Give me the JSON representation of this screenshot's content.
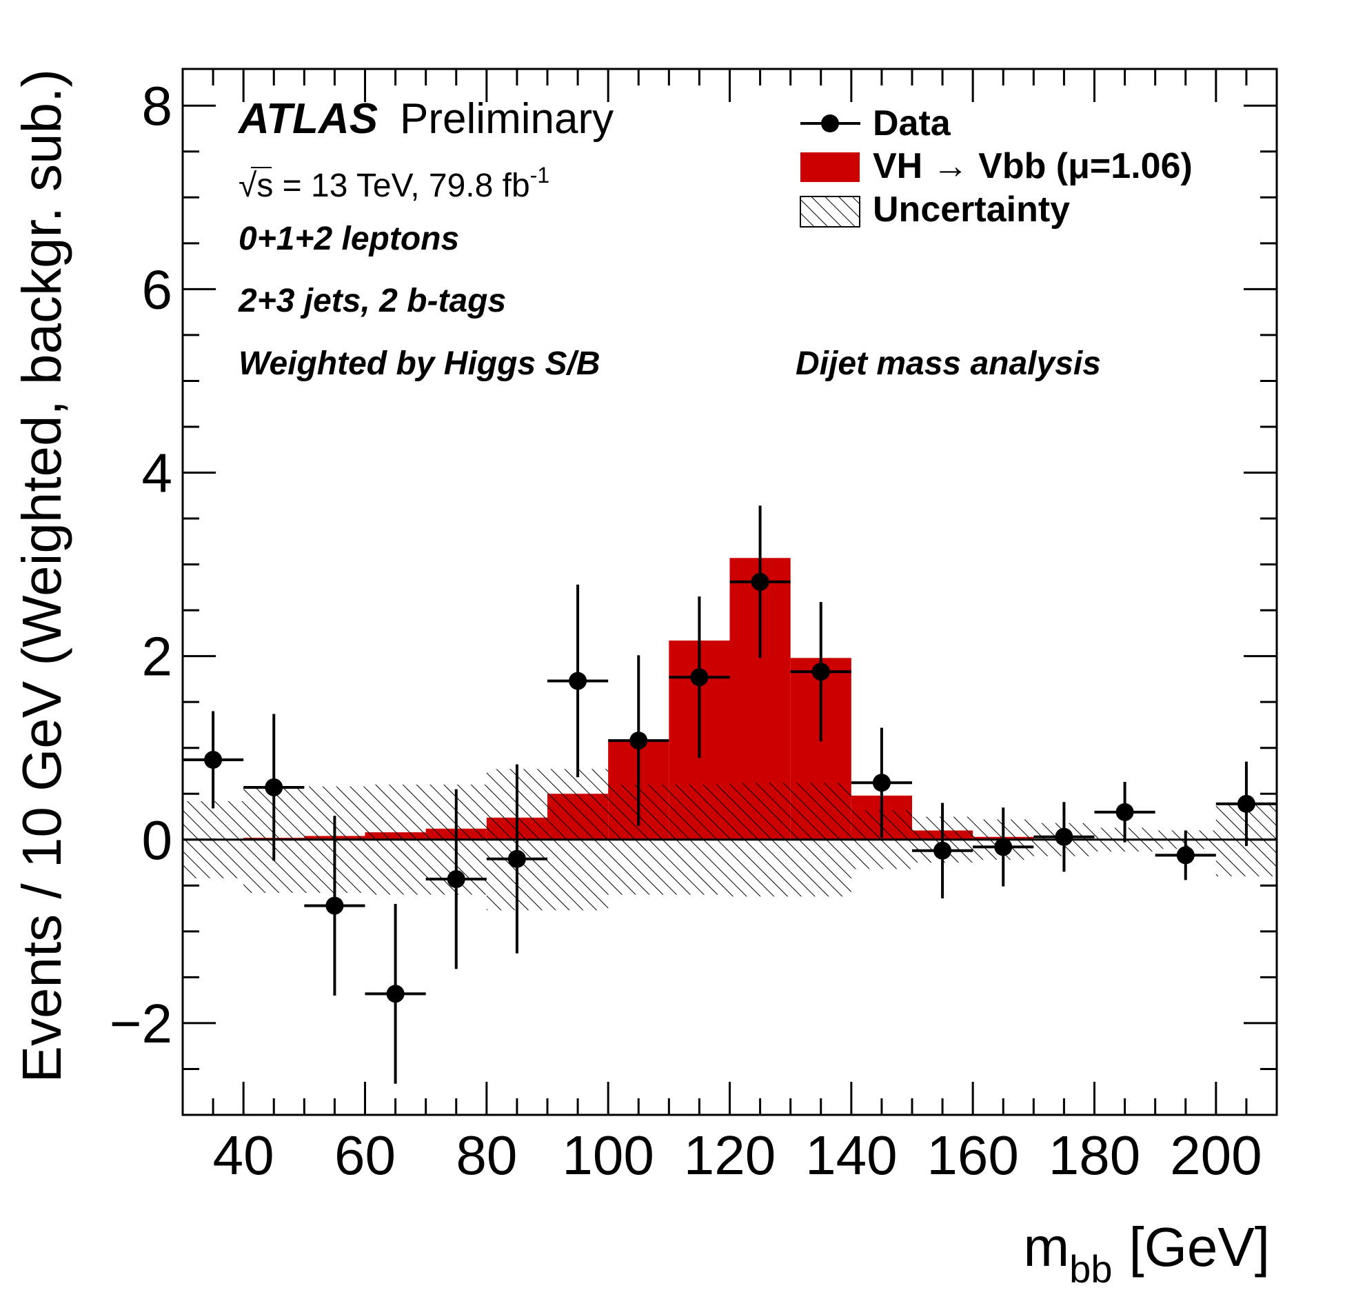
{
  "chart_data": {
    "type": "bar",
    "title": "",
    "xlabel": "m",
    "xlabel_sub": "bb",
    "xlabel_unit": "[GeV]",
    "ylabel": "Events / 10 GeV (Weighted, backgr. sub.)",
    "xlim": [
      30,
      210
    ],
    "ylim": [
      -3,
      8.4
    ],
    "x_ticks": [
      "40",
      "60",
      "80",
      "100",
      "120",
      "140",
      "160",
      "180",
      "200"
    ],
    "y_ticks": [
      "8",
      "6",
      "4",
      "2",
      "0",
      "−2"
    ],
    "bin_edges": [
      30,
      40,
      50,
      60,
      70,
      80,
      90,
      100,
      110,
      120,
      130,
      140,
      150,
      160,
      170,
      180,
      190,
      200,
      210
    ],
    "series": [
      {
        "name": "VH → Vbb (μ=1.06)",
        "style": "filled-histogram",
        "color": "#cc0000",
        "values": [
          0.0,
          0.02,
          0.04,
          0.08,
          0.12,
          0.24,
          0.5,
          1.07,
          2.17,
          3.07,
          1.98,
          0.48,
          0.1,
          0.03,
          0.01,
          0.0,
          0.0,
          0.0
        ]
      },
      {
        "name": "Uncertainty",
        "style": "hatched-band",
        "color": "#000000",
        "values": [
          0.42,
          0.58,
          0.58,
          0.6,
          0.6,
          0.77,
          0.77,
          0.6,
          0.6,
          0.62,
          0.62,
          0.32,
          0.25,
          0.22,
          0.18,
          0.13,
          0.1,
          0.4
        ]
      },
      {
        "name": "Data",
        "style": "points-with-errors",
        "color": "#000000",
        "values": [
          0.87,
          0.57,
          -0.72,
          -1.68,
          -0.43,
          -0.21,
          1.73,
          1.08,
          1.77,
          2.81,
          1.83,
          0.62,
          -0.12,
          -0.08,
          0.03,
          0.3,
          -0.17,
          0.39
        ],
        "errors": [
          0.53,
          0.8,
          0.98,
          0.98,
          0.98,
          1.03,
          1.05,
          0.93,
          0.88,
          0.83,
          0.76,
          0.6,
          0.52,
          0.43,
          0.38,
          0.33,
          0.27,
          0.46
        ]
      }
    ],
    "legend": {
      "position": "top-right",
      "entries": [
        "Data",
        "VH → Vbb (μ=1.06)",
        "Uncertainty"
      ]
    },
    "annotations": {
      "experiment": "ATLAS",
      "status": "Preliminary",
      "energy_prefix": "√s = 13 TeV, 79.8 fb",
      "energy_exp": "-1",
      "channel": "0+1+2 leptons",
      "jets": "2+3 jets, 2 b-tags",
      "weighting": "Weighted by Higgs S/B",
      "analysis": "Dijet mass analysis"
    },
    "grid": false
  }
}
